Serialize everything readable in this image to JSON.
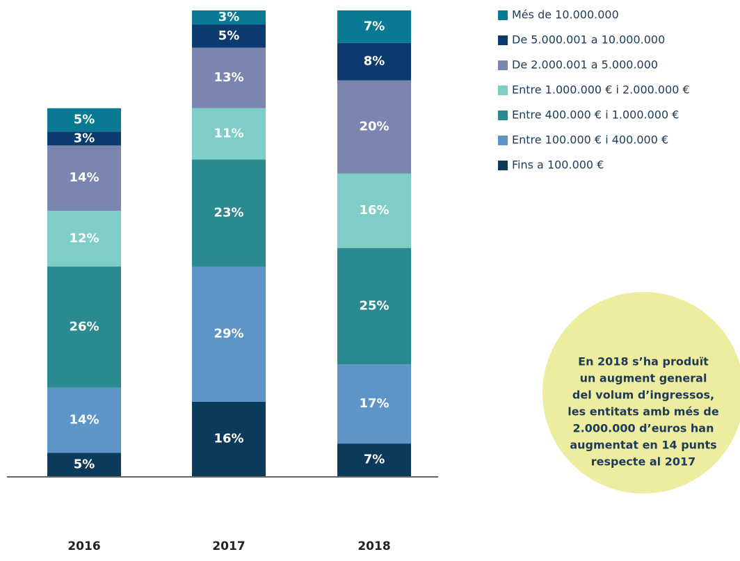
{
  "chart_data": {
    "type": "stacked_bar",
    "categories": [
      "2016",
      "2017",
      "2018"
    ],
    "ylim": [
      0,
      100
    ],
    "series": [
      {
        "name": "Més de 10.000.000",
        "color": "#0a7a94",
        "values": [
          5,
          3,
          7
        ]
      },
      {
        "name": "De 5.000.001 a 10.000.000",
        "color": "#0b3b6e",
        "values": [
          3,
          5,
          8
        ]
      },
      {
        "name": "De 2.000.001 a 5.000.000",
        "color": "#7b86b0",
        "values": [
          14,
          13,
          20
        ]
      },
      {
        "name": "Entre 1.000.000 € i 2.000.000 €",
        "color": "#7ecdc6",
        "values": [
          12,
          11,
          16
        ]
      },
      {
        "name": "Entre 400.000 € i 1.000.000 €",
        "color": "#2b8a8f",
        "values": [
          26,
          23,
          25
        ]
      },
      {
        "name": "Entre 100.000 € i 400.000 €",
        "color": "#5d95c9",
        "values": [
          14,
          29,
          17
        ]
      },
      {
        "name": "Fins a 100.000 €",
        "color": "#0b3a5a",
        "values": [
          5,
          16,
          7
        ]
      }
    ],
    "value_labels": [
      [
        "5%",
        "3%",
        "7%"
      ],
      [
        "3%",
        "5%",
        "8%"
      ],
      [
        "14%",
        "13%",
        "20%"
      ],
      [
        "12%",
        "11%",
        "16%"
      ],
      [
        "26%",
        "23%",
        "25%"
      ],
      [
        "14%",
        "29%",
        "17%"
      ],
      [
        "5%",
        "16%",
        "7%"
      ]
    ],
    "annotation": [
      "En 2018 s’ha produït",
      "un augment general",
      "del volum d’ingressos,",
      "les entitats amb més de",
      "2.000.000 d’euros han",
      "augmentat en 14 punts",
      "respecte al 2017"
    ],
    "annotation_color": "#eeed9f"
  }
}
